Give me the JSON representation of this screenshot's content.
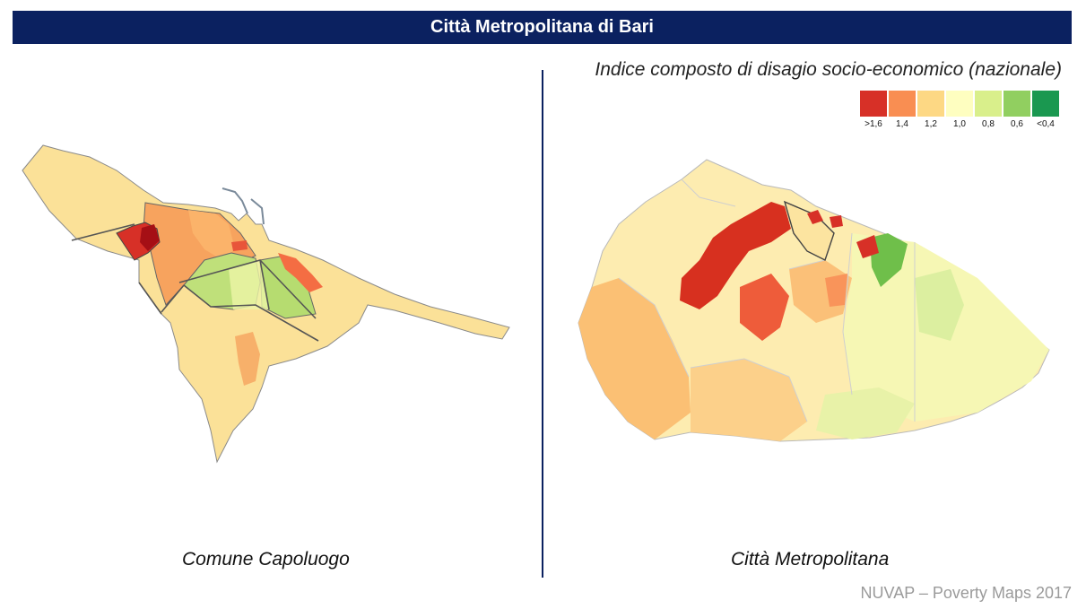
{
  "header": {
    "title": "Città Metropolitana di Bari"
  },
  "right_panel": {
    "map_title": "Indice composto di disagio socio-economico (nazionale)",
    "caption": "Città Metropolitana"
  },
  "left_panel": {
    "caption": "Comune Capoluogo"
  },
  "legend": [
    {
      "label": ">1,6",
      "color": "#d73027"
    },
    {
      "label": "1,4",
      "color": "#f98e52"
    },
    {
      "label": "1,2",
      "color": "#fdd884"
    },
    {
      "label": "1,0",
      "color": "#fefec0"
    },
    {
      "label": "0,8",
      "color": "#d9ef8b"
    },
    {
      "label": "0,6",
      "color": "#91cf60"
    },
    {
      "label": "<0,4",
      "color": "#1a9850"
    }
  ],
  "footer": {
    "text": "NUVAP – Poverty Maps 2017"
  }
}
